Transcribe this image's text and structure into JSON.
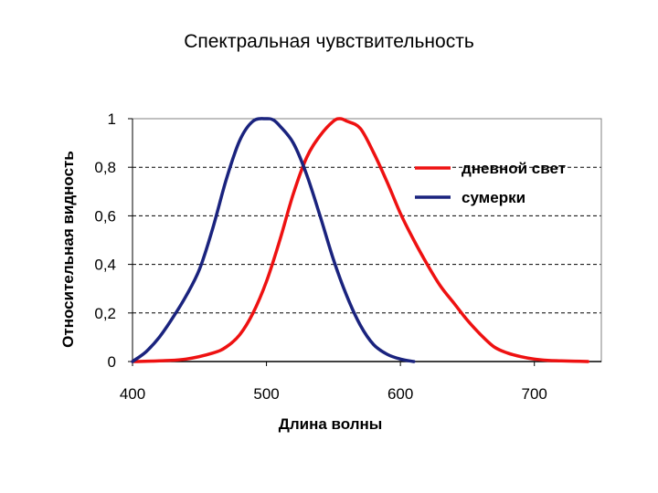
{
  "title": "Спектральная чувствительность",
  "chart_data": {
    "type": "line",
    "title": "Спектральная чувствительность",
    "xlabel": "Длина волны",
    "ylabel": "Относительная видность",
    "xlim": [
      400,
      750
    ],
    "ylim": [
      0,
      1
    ],
    "x_ticks": [
      400,
      500,
      600,
      700
    ],
    "x_tick_labels": [
      "400",
      "500",
      "600",
      "700"
    ],
    "y_ticks": [
      0,
      0.2,
      0.4,
      0.6,
      0.8,
      1
    ],
    "y_tick_labels": [
      "0",
      "0,2",
      "0,4",
      "0,6",
      "0,8",
      "1"
    ],
    "grid": "horizontal dashed",
    "legend_position": "top-right",
    "series": [
      {
        "name": "дневной свет",
        "color": "#ee1111",
        "x": [
          400,
          420,
          440,
          460,
          470,
          480,
          490,
          500,
          510,
          520,
          530,
          540,
          550,
          555,
          560,
          570,
          580,
          590,
          600,
          610,
          620,
          630,
          640,
          650,
          660,
          670,
          680,
          690,
          700,
          710,
          720,
          740
        ],
        "y": [
          0.0,
          0.003,
          0.01,
          0.035,
          0.06,
          0.11,
          0.2,
          0.33,
          0.5,
          0.69,
          0.84,
          0.93,
          0.99,
          1.0,
          0.99,
          0.96,
          0.86,
          0.74,
          0.61,
          0.5,
          0.4,
          0.31,
          0.24,
          0.17,
          0.11,
          0.06,
          0.035,
          0.02,
          0.01,
          0.005,
          0.003,
          0.0
        ]
      },
      {
        "name": "сумерки",
        "color": "#1a237e",
        "x": [
          400,
          410,
          420,
          430,
          440,
          450,
          460,
          470,
          480,
          490,
          500,
          505,
          510,
          520,
          530,
          540,
          550,
          560,
          570,
          580,
          590,
          600,
          610
        ],
        "y": [
          0.0,
          0.04,
          0.1,
          0.18,
          0.27,
          0.38,
          0.55,
          0.75,
          0.91,
          0.99,
          1.0,
          0.995,
          0.97,
          0.9,
          0.77,
          0.6,
          0.42,
          0.27,
          0.15,
          0.07,
          0.03,
          0.01,
          0.0
        ]
      }
    ]
  }
}
